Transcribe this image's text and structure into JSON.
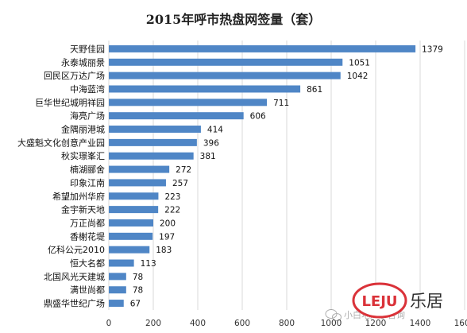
{
  "chart_data": {
    "type": "bar",
    "orientation": "horizontal",
    "title": "2015年呼市热盘网签量（套）",
    "categories": [
      "天野佳园",
      "永泰城丽景",
      "回民区万达广场",
      "中海蓝湾",
      "巨华世纪城明祥园",
      "海亮广场",
      "金隅丽港城",
      "大盛魁文化创意产业园",
      "秋实璟峯汇",
      "楠湖郦舍",
      "印象江南",
      "希望加州华府",
      "金宇新天地",
      "万正尚都",
      "香榭花堤",
      "亿科公元2010",
      "恒大名都",
      "北国风光天建城",
      "满世尚都",
      "鼎盛华世纪广场"
    ],
    "values": [
      1379,
      1051,
      1042,
      861,
      711,
      606,
      414,
      396,
      381,
      272,
      257,
      223,
      222,
      200,
      197,
      183,
      113,
      78,
      78,
      67
    ],
    "xlim": [
      0,
      1600
    ],
    "xticks": [
      0,
      200,
      400,
      600,
      800,
      1000,
      1200,
      1400,
      1600
    ],
    "grid": true,
    "bar_color": "#4f86c6"
  },
  "watermark": {
    "logo_text": "LEJU",
    "brand_text": "乐居",
    "wechat_text": "小白地产小咨询",
    "logo_color": "#d9282f"
  }
}
